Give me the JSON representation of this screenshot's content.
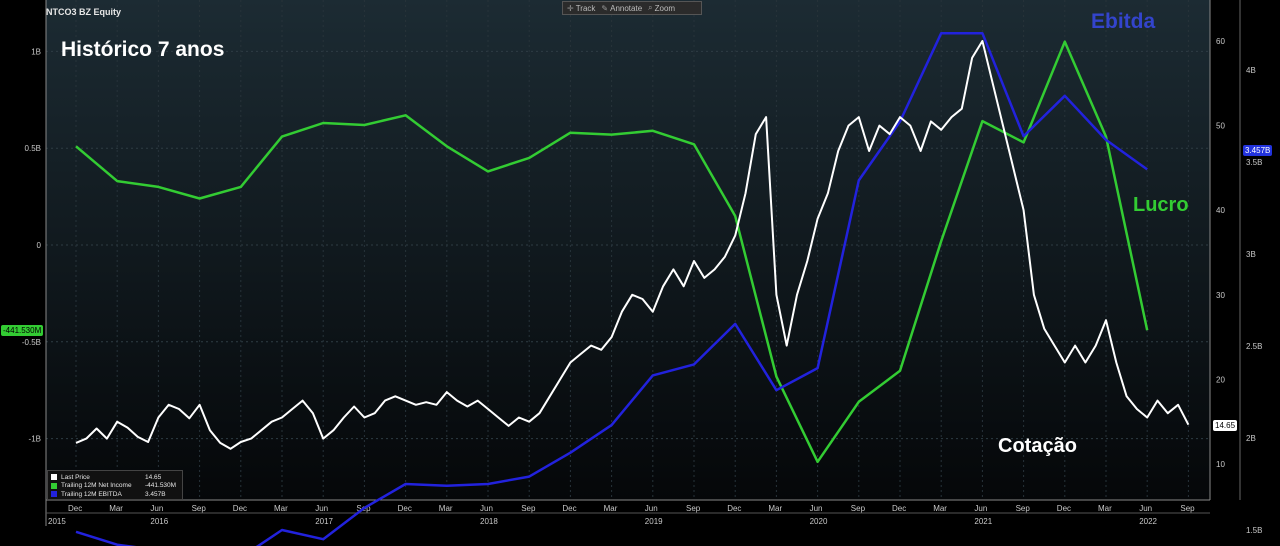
{
  "header": {
    "ticker": "NTCO3 BZ Equity"
  },
  "toolbar": {
    "track": "Track",
    "annotate": "Annotate",
    "zoom": "Zoom"
  },
  "annotations": {
    "historico": "Histórico 7 anos",
    "ebitda": "Ebitda",
    "lucro": "Lucro",
    "cotacao": "Cotação"
  },
  "legend": [
    {
      "label": "Last Price",
      "value": "14.65",
      "color": "#ffffff"
    },
    {
      "label": "Trailing 12M Net Income",
      "value": "-441.530M",
      "color": "#33cc33"
    },
    {
      "label": "Trailing 12M EBITDA",
      "value": "3.457B",
      "color": "#2222dd"
    }
  ],
  "value_tags": {
    "net_income": "-441.530M",
    "ebitda": "3.457B",
    "price": "14.65"
  },
  "chart_data": {
    "type": "line",
    "x_ticks": [
      {
        "label": "Dec",
        "year": "2015"
      },
      {
        "label": "Mar"
      },
      {
        "label": "Jun",
        "year": "2016"
      },
      {
        "label": "Sep"
      },
      {
        "label": "Dec"
      },
      {
        "label": "Mar"
      },
      {
        "label": "Jun",
        "year": "2017"
      },
      {
        "label": "Sep"
      },
      {
        "label": "Dec"
      },
      {
        "label": "Mar"
      },
      {
        "label": "Jun",
        "year": "2018"
      },
      {
        "label": "Sep"
      },
      {
        "label": "Dec"
      },
      {
        "label": "Mar"
      },
      {
        "label": "Jun",
        "year": "2019"
      },
      {
        "label": "Sep"
      },
      {
        "label": "Dec"
      },
      {
        "label": "Mar"
      },
      {
        "label": "Jun",
        "year": "2020"
      },
      {
        "label": "Sep"
      },
      {
        "label": "Dec"
      },
      {
        "label": "Mar"
      },
      {
        "label": "Jun",
        "year": "2021"
      },
      {
        "label": "Sep"
      },
      {
        "label": "Dec"
      },
      {
        "label": "Mar"
      },
      {
        "label": "Jun",
        "year": "2022"
      },
      {
        "label": "Sep"
      }
    ],
    "left_axis": {
      "ticks": [
        "1B",
        "0.5B",
        "0",
        "-0.5B",
        "-1B"
      ],
      "values": [
        1.0,
        0.5,
        0,
        -0.5,
        -1.0
      ],
      "range": [
        -1.2,
        1.2
      ]
    },
    "right_axis_price": {
      "ticks": [
        "60",
        "50",
        "40",
        "30",
        "20",
        "10"
      ],
      "values": [
        60,
        50,
        40,
        30,
        20,
        10
      ],
      "range": [
        5,
        65
      ]
    },
    "right_axis_ebitda": {
      "ticks": [
        "4B",
        "3.5B",
        "3B",
        "2.5B",
        "2B",
        "1.5B"
      ],
      "values": [
        4.0,
        3.5,
        3.0,
        2.5,
        2.0,
        1.5
      ],
      "range": [
        1.25,
        4.25
      ]
    },
    "series": [
      {
        "name": "Trailing 12M Net Income",
        "axis": "left",
        "points": [
          [
            0,
            0.51
          ],
          [
            1,
            0.33
          ],
          [
            2,
            0.3
          ],
          [
            3,
            0.24
          ],
          [
            4,
            0.3
          ],
          [
            5,
            0.56
          ],
          [
            6,
            0.63
          ],
          [
            7,
            0.62
          ],
          [
            8,
            0.67
          ],
          [
            9,
            0.51
          ],
          [
            10,
            0.38
          ],
          [
            11,
            0.45
          ],
          [
            12,
            0.58
          ],
          [
            13,
            0.57
          ],
          [
            14,
            0.59
          ],
          [
            15,
            0.52
          ],
          [
            16,
            0.15
          ],
          [
            17,
            -0.68
          ],
          [
            18,
            -1.12
          ],
          [
            19,
            -0.81
          ],
          [
            20,
            -0.65
          ],
          [
            21,
            0.02
          ],
          [
            22,
            0.64
          ],
          [
            23,
            0.53
          ],
          [
            24,
            1.05
          ],
          [
            25,
            0.56
          ],
          [
            26,
            -0.44
          ]
        ]
      },
      {
        "name": "Trailing 12M EBITDA",
        "axis": "right_ebitda",
        "points": [
          [
            0,
            1.49
          ],
          [
            1,
            1.42
          ],
          [
            2,
            1.39
          ],
          [
            3,
            1.33
          ],
          [
            4,
            1.35
          ],
          [
            5,
            1.5
          ],
          [
            6,
            1.45
          ],
          [
            7,
            1.62
          ],
          [
            8,
            1.75
          ],
          [
            9,
            1.74
          ],
          [
            10,
            1.75
          ],
          [
            11,
            1.79
          ],
          [
            12,
            1.92
          ],
          [
            13,
            2.07
          ],
          [
            14,
            2.34
          ],
          [
            15,
            2.4
          ],
          [
            16,
            2.62
          ],
          [
            17,
            2.26
          ],
          [
            18,
            2.38
          ],
          [
            19,
            3.4
          ],
          [
            20,
            3.72
          ],
          [
            21,
            4.2
          ],
          [
            22,
            4.2
          ],
          [
            23,
            3.64
          ],
          [
            24,
            3.86
          ],
          [
            25,
            3.62
          ],
          [
            26,
            3.46
          ]
        ]
      },
      {
        "name": "Last Price",
        "axis": "right_price",
        "points": [
          [
            0,
            12.5
          ],
          [
            0.25,
            13.0
          ],
          [
            0.5,
            14.2
          ],
          [
            0.75,
            13.0
          ],
          [
            1,
            15.0
          ],
          [
            1.25,
            14.3
          ],
          [
            1.5,
            13.2
          ],
          [
            1.75,
            12.6
          ],
          [
            2,
            15.5
          ],
          [
            2.25,
            17.0
          ],
          [
            2.5,
            16.5
          ],
          [
            2.75,
            15.4
          ],
          [
            3,
            17.0
          ],
          [
            3.25,
            14.0
          ],
          [
            3.5,
            12.5
          ],
          [
            3.75,
            11.8
          ],
          [
            4,
            12.6
          ],
          [
            4.25,
            13.0
          ],
          [
            4.5,
            14.0
          ],
          [
            4.75,
            15.0
          ],
          [
            5,
            15.5
          ],
          [
            5.25,
            16.5
          ],
          [
            5.5,
            17.5
          ],
          [
            5.75,
            16.0
          ],
          [
            6,
            13.0
          ],
          [
            6.25,
            14.0
          ],
          [
            6.5,
            15.5
          ],
          [
            6.75,
            16.8
          ],
          [
            7,
            15.5
          ],
          [
            7.25,
            16.0
          ],
          [
            7.5,
            17.5
          ],
          [
            7.75,
            18.0
          ],
          [
            8,
            17.5
          ],
          [
            8.25,
            17.0
          ],
          [
            8.5,
            17.3
          ],
          [
            8.75,
            17.0
          ],
          [
            9,
            18.5
          ],
          [
            9.25,
            17.5
          ],
          [
            9.5,
            16.8
          ],
          [
            9.75,
            17.5
          ],
          [
            10,
            16.5
          ],
          [
            10.25,
            15.5
          ],
          [
            10.5,
            14.5
          ],
          [
            10.75,
            15.5
          ],
          [
            11,
            15.0
          ],
          [
            11.25,
            16.0
          ],
          [
            11.5,
            18.0
          ],
          [
            11.75,
            20.0
          ],
          [
            12,
            22.0
          ],
          [
            12.25,
            23.0
          ],
          [
            12.5,
            24.0
          ],
          [
            12.75,
            23.5
          ],
          [
            13,
            25.0
          ],
          [
            13.25,
            28.0
          ],
          [
            13.5,
            30.0
          ],
          [
            13.75,
            29.5
          ],
          [
            14,
            28.0
          ],
          [
            14.25,
            31.0
          ],
          [
            14.5,
            33.0
          ],
          [
            14.75,
            31.0
          ],
          [
            15,
            34.0
          ],
          [
            15.25,
            32.0
          ],
          [
            15.5,
            33.0
          ],
          [
            15.75,
            34.5
          ],
          [
            16,
            37.0
          ],
          [
            16.25,
            42.0
          ],
          [
            16.5,
            49.0
          ],
          [
            16.75,
            51.0
          ],
          [
            17,
            30.0
          ],
          [
            17.25,
            24.0
          ],
          [
            17.5,
            30.0
          ],
          [
            17.75,
            34.0
          ],
          [
            18,
            39.0
          ],
          [
            18.25,
            42.0
          ],
          [
            18.5,
            47.0
          ],
          [
            18.75,
            50.0
          ],
          [
            19,
            51.0
          ],
          [
            19.25,
            47.0
          ],
          [
            19.5,
            50.0
          ],
          [
            19.75,
            49.0
          ],
          [
            20,
            51.0
          ],
          [
            20.25,
            50.0
          ],
          [
            20.5,
            47.0
          ],
          [
            20.75,
            50.5
          ],
          [
            21,
            49.5
          ],
          [
            21.25,
            51.0
          ],
          [
            21.5,
            52.0
          ],
          [
            21.75,
            58.0
          ],
          [
            22,
            60.0
          ],
          [
            22.25,
            55.0
          ],
          [
            22.5,
            50.0
          ],
          [
            22.75,
            45.0
          ],
          [
            23,
            40.0
          ],
          [
            23.25,
            30.0
          ],
          [
            23.5,
            26.0
          ],
          [
            23.75,
            24.0
          ],
          [
            24,
            22.0
          ],
          [
            24.25,
            24.0
          ],
          [
            24.5,
            22.0
          ],
          [
            24.75,
            24.0
          ],
          [
            25,
            27.0
          ],
          [
            25.25,
            22.0
          ],
          [
            25.5,
            18.0
          ],
          [
            25.75,
            16.5
          ],
          [
            26,
            15.5
          ],
          [
            26.25,
            17.5
          ],
          [
            26.5,
            16.0
          ],
          [
            26.75,
            17.0
          ],
          [
            27,
            14.65
          ]
        ]
      }
    ],
    "grid": true
  }
}
